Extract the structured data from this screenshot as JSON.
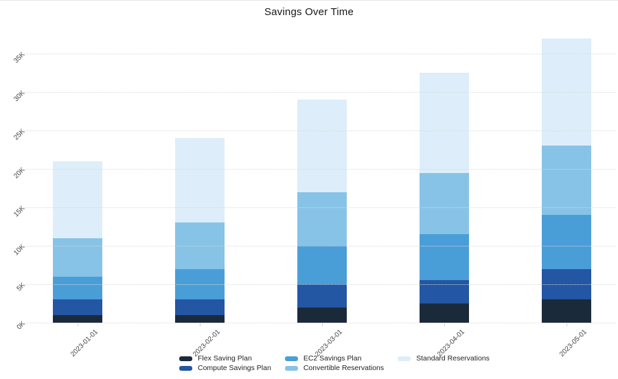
{
  "page": {
    "title": "Savings Over Time"
  },
  "chart_data": {
    "type": "bar",
    "stacked": true,
    "title": "Savings Over Time",
    "categories": [
      "2023-01-01",
      "2023-02-01",
      "2023-03-01",
      "2023-04-01",
      "2023-05-01"
    ],
    "series": [
      {
        "name": "Flex Saving Plan",
        "color": "#1b2a3b",
        "values": [
          1000,
          1000,
          2000,
          2500,
          3000
        ]
      },
      {
        "name": "Compute Savings Plan",
        "color": "#2356a3",
        "values": [
          2000,
          2000,
          3000,
          3000,
          4000
        ]
      },
      {
        "name": "EC2 Savings Plan",
        "color": "#4a9ed8",
        "values": [
          3000,
          4000,
          5000,
          6000,
          7000
        ]
      },
      {
        "name": "Convertible Reservations",
        "color": "#87c3e6",
        "values": [
          5000,
          6000,
          7000,
          8000,
          9000
        ]
      },
      {
        "name": "Standard Reservations",
        "color": "#ddeefa",
        "values": [
          10000,
          11000,
          12000,
          13000,
          14000
        ]
      }
    ],
    "totals": [
      21000,
      24000,
      29000,
      32500,
      37000
    ],
    "xlabel": "",
    "ylabel": "",
    "ylim": [
      0,
      38750
    ],
    "ytick_values": [
      0,
      5000,
      10000,
      15000,
      20000,
      25000,
      30000,
      35000
    ],
    "ytick_labels": [
      "0K",
      "5K",
      "10K",
      "15K",
      "20K",
      "25K",
      "30K",
      "35K"
    ],
    "grid": true,
    "gridline_style": "dotted",
    "tick_label_rotation_deg": 45,
    "legend_position": "bottom",
    "legend_columns_order": [
      [
        "Flex Saving Plan",
        "Compute Savings Plan"
      ],
      [
        "EC2 Savings Plan",
        "Convertible Reservations"
      ],
      [
        "Standard Reservations"
      ]
    ]
  }
}
